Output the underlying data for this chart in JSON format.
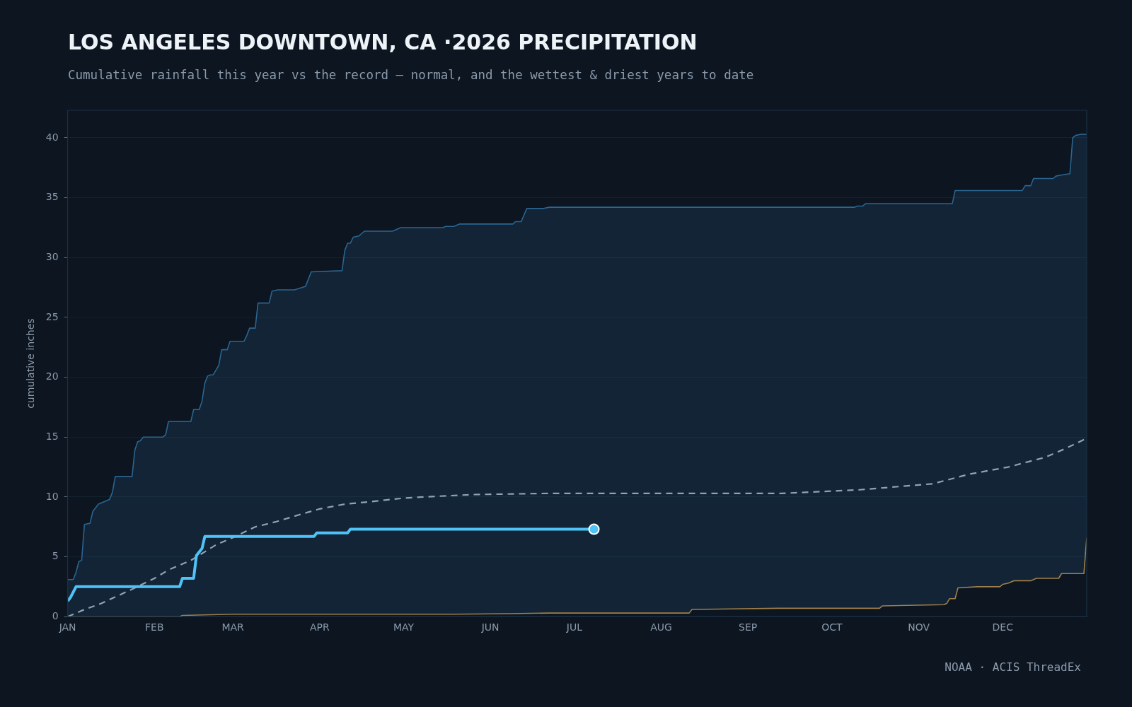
{
  "chart_data": {
    "type": "line",
    "title": "LOS ANGELES DOWNTOWN, CA ·2026 PRECIPITATION",
    "subtitle": "Cumulative rainfall this year vs the record — normal, and the wettest & driest years to date",
    "ylabel": "cumulative inches",
    "annotations": [
      "NOAA · ACIS ThreadEx"
    ],
    "xlim": [
      "2026-01-01",
      "2026-12-31"
    ],
    "xticks": [
      {
        "value": "2026-01-01",
        "label": "JAN"
      },
      {
        "value": "2026-02-01",
        "label": "FEB"
      },
      {
        "value": "2026-03-01",
        "label": "MAR"
      },
      {
        "value": "2026-04-01",
        "label": "APR"
      },
      {
        "value": "2026-05-01",
        "label": "MAY"
      },
      {
        "value": "2026-06-01",
        "label": "JUN"
      },
      {
        "value": "2026-07-01",
        "label": "JUL"
      },
      {
        "value": "2026-08-01",
        "label": "AUG"
      },
      {
        "value": "2026-09-01",
        "label": "SEP"
      },
      {
        "value": "2026-10-01",
        "label": "OCT"
      },
      {
        "value": "2026-11-01",
        "label": "NOV"
      },
      {
        "value": "2026-12-01",
        "label": "DEC"
      }
    ],
    "ylim": [
      0,
      42.3
    ],
    "yticks": [
      0,
      5,
      10,
      15,
      20,
      25,
      30,
      35,
      40
    ],
    "grid": "y",
    "legend": false,
    "series": [
      {
        "type": "area",
        "color": "#2b6590",
        "x": [
          "2026-01-01",
          "2026-01-03",
          "2026-01-04",
          "2026-01-05",
          "2026-01-06",
          "2026-01-07",
          "2026-01-09",
          "2026-01-10",
          "2026-01-12",
          "2026-01-14",
          "2026-01-16",
          "2026-01-17",
          "2026-01-18",
          "2026-01-24",
          "2026-01-25",
          "2026-01-26",
          "2026-01-27",
          "2026-01-28",
          "2026-02-04",
          "2026-02-05",
          "2026-02-06",
          "2026-02-14",
          "2026-02-15",
          "2026-02-17",
          "2026-02-18",
          "2026-02-19",
          "2026-02-20",
          "2026-02-21",
          "2026-02-22",
          "2026-02-24",
          "2026-02-25",
          "2026-02-27",
          "2026-02-28",
          "2026-03-05",
          "2026-03-06",
          "2026-03-07",
          "2026-03-09",
          "2026-03-10",
          "2026-03-14",
          "2026-03-15",
          "2026-03-17",
          "2026-03-23",
          "2026-03-27",
          "2026-03-29",
          "2026-04-09",
          "2026-04-10",
          "2026-04-11",
          "2026-04-12",
          "2026-04-13",
          "2026-04-15",
          "2026-04-17",
          "2026-04-27",
          "2026-04-30",
          "2026-05-15",
          "2026-05-16",
          "2026-05-19",
          "2026-05-21",
          "2026-06-09",
          "2026-06-10",
          "2026-06-12",
          "2026-06-14",
          "2026-06-20",
          "2026-06-22",
          "2026-10-09",
          "2026-10-10",
          "2026-10-12",
          "2026-10-13",
          "2026-11-13",
          "2026-11-14",
          "2026-12-08",
          "2026-12-09",
          "2026-12-11",
          "2026-12-12",
          "2026-12-19",
          "2026-12-20",
          "2026-12-22",
          "2026-12-25",
          "2026-12-26",
          "2026-12-27",
          "2026-12-29",
          "2026-12-31"
        ],
        "values": [
          3.1,
          3.1,
          3.7,
          4.6,
          4.7,
          7.7,
          7.8,
          8.8,
          9.4,
          9.6,
          9.8,
          10.4,
          11.7,
          11.7,
          13.9,
          14.6,
          14.7,
          15.0,
          15.0,
          15.2,
          16.3,
          16.3,
          17.3,
          17.3,
          18.0,
          19.5,
          20.1,
          20.2,
          20.2,
          21.0,
          22.3,
          22.3,
          23.0,
          23.0,
          23.5,
          24.1,
          24.1,
          26.2,
          26.2,
          27.2,
          27.3,
          27.3,
          27.6,
          28.8,
          28.9,
          30.6,
          31.2,
          31.2,
          31.7,
          31.8,
          32.2,
          32.2,
          32.5,
          32.5,
          32.6,
          32.6,
          32.8,
          32.8,
          33.0,
          33.0,
          34.1,
          34.1,
          34.2,
          34.2,
          34.3,
          34.3,
          34.5,
          34.5,
          35.6,
          35.6,
          36.0,
          36.0,
          36.6,
          36.6,
          36.8,
          36.9,
          37.0,
          40.0,
          40.2,
          40.3,
          40.3
        ]
      },
      {
        "type": "area",
        "color": "#a0804a",
        "x": [
          "2026-01-01",
          "2026-02-10",
          "2026-02-11",
          "2026-03-01",
          "2026-04-18",
          "2026-05-19",
          "2026-06-08",
          "2026-06-22",
          "2026-08-11",
          "2026-08-12",
          "2026-08-26",
          "2026-09-12",
          "2026-10-18",
          "2026-10-19",
          "2026-11-10",
          "2026-11-11",
          "2026-11-12",
          "2026-11-14",
          "2026-11-15",
          "2026-11-22",
          "2026-11-30",
          "2026-12-01",
          "2026-12-03",
          "2026-12-05",
          "2026-12-11",
          "2026-12-13",
          "2026-12-21",
          "2026-12-22",
          "2026-12-30",
          "2026-12-31"
        ],
        "values": [
          0.0,
          0.0,
          0.1,
          0.2,
          0.2,
          0.2,
          0.25,
          0.3,
          0.3,
          0.6,
          0.65,
          0.7,
          0.7,
          0.9,
          1.0,
          1.1,
          1.5,
          1.5,
          2.4,
          2.5,
          2.5,
          2.7,
          2.8,
          3.0,
          3.0,
          3.2,
          3.2,
          3.6,
          3.6,
          6.6
        ]
      },
      {
        "type": "line",
        "color": "#8fa3b4",
        "line_style": "dashed",
        "x": [
          "2026-01-01",
          "2026-01-07",
          "2026-01-13",
          "2026-01-25",
          "2026-02-01",
          "2026-02-06",
          "2026-02-14",
          "2026-02-23",
          "2026-03-01",
          "2026-03-09",
          "2026-03-16",
          "2026-03-26",
          "2026-04-01",
          "2026-04-10",
          "2026-04-19",
          "2026-05-01",
          "2026-05-08",
          "2026-05-26",
          "2026-06-22",
          "2026-08-15",
          "2026-09-13",
          "2026-09-23",
          "2026-10-11",
          "2026-11-06",
          "2026-11-19",
          "2026-12-03",
          "2026-12-16",
          "2026-12-23",
          "2026-12-31"
        ],
        "values": [
          0.0,
          0.6,
          1.1,
          2.4,
          3.2,
          3.9,
          4.7,
          6.0,
          6.6,
          7.5,
          7.9,
          8.6,
          9.0,
          9.4,
          9.6,
          9.9,
          10.0,
          10.2,
          10.3,
          10.3,
          10.3,
          10.4,
          10.6,
          11.1,
          11.9,
          12.5,
          13.3,
          14.0,
          14.9
        ]
      },
      {
        "type": "line",
        "color": "#4fc3f7",
        "x": [
          "2026-01-01",
          "2026-01-02",
          "2026-01-04",
          "2026-02-10",
          "2026-02-11",
          "2026-02-15",
          "2026-02-16",
          "2026-02-18",
          "2026-02-19",
          "2026-03-30",
          "2026-03-31",
          "2026-04-11",
          "2026-04-12",
          "2026-07-08"
        ],
        "values": [
          1.3,
          1.6,
          2.5,
          2.5,
          3.2,
          3.2,
          5.1,
          5.7,
          6.7,
          6.7,
          7.0,
          7.0,
          7.3,
          7.3
        ]
      },
      {
        "type": "scatter",
        "color": "#4fc3f7",
        "marker": "circle",
        "x": [
          "2026-07-08"
        ],
        "values": [
          7.3
        ]
      }
    ]
  }
}
